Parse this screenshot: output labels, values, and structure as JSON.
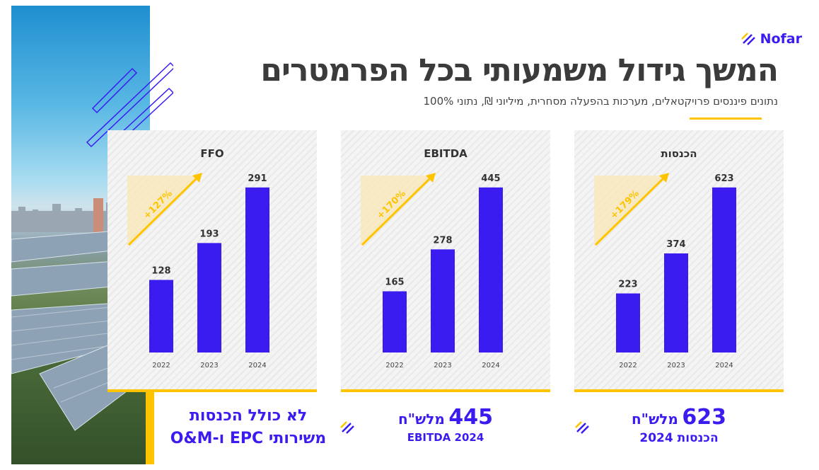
{
  "header": {
    "title": "המשך גידול משמעותי בכל הפרמטרים",
    "subtitle": "נתונים פיננסים פרויקטאלים, מערכות בהפעלה מסחרית, מיליוני ₪, נתוני 100%"
  },
  "logo": {
    "text": "Nofar",
    "icon": "nofar-stripes-icon"
  },
  "colors": {
    "bar": "#3a1cf0",
    "accent": "#ffc400",
    "title": "#3b3b3b"
  },
  "chart_data": [
    {
      "type": "bar",
      "title": "הכנסות",
      "categories": [
        "2022",
        "2023",
        "2024"
      ],
      "values": [
        223,
        374,
        623
      ],
      "growth_label": "+179%",
      "ylim": [
        0,
        700
      ]
    },
    {
      "type": "bar",
      "title": "EBITDA",
      "categories": [
        "2022",
        "2023",
        "2024"
      ],
      "values": [
        165,
        278,
        445
      ],
      "growth_label": "+170%",
      "ylim": [
        0,
        500
      ]
    },
    {
      "type": "bar",
      "title": "FFO",
      "categories": [
        "2022",
        "2023",
        "2024"
      ],
      "values": [
        128,
        193,
        291
      ],
      "growth_label": "+127%",
      "ylim": [
        0,
        327
      ]
    }
  ],
  "kpis": {
    "revenue": {
      "value": "623",
      "unit": "מלש\"ח",
      "label": "הכנסות 2024"
    },
    "ebitda": {
      "value": "445",
      "unit": "מלש\"ח",
      "label": "EBITDA 2024"
    },
    "ffo": {
      "line1": "לא כולל הכנסות",
      "line2": "משירותי EPC ו-O&M"
    }
  }
}
